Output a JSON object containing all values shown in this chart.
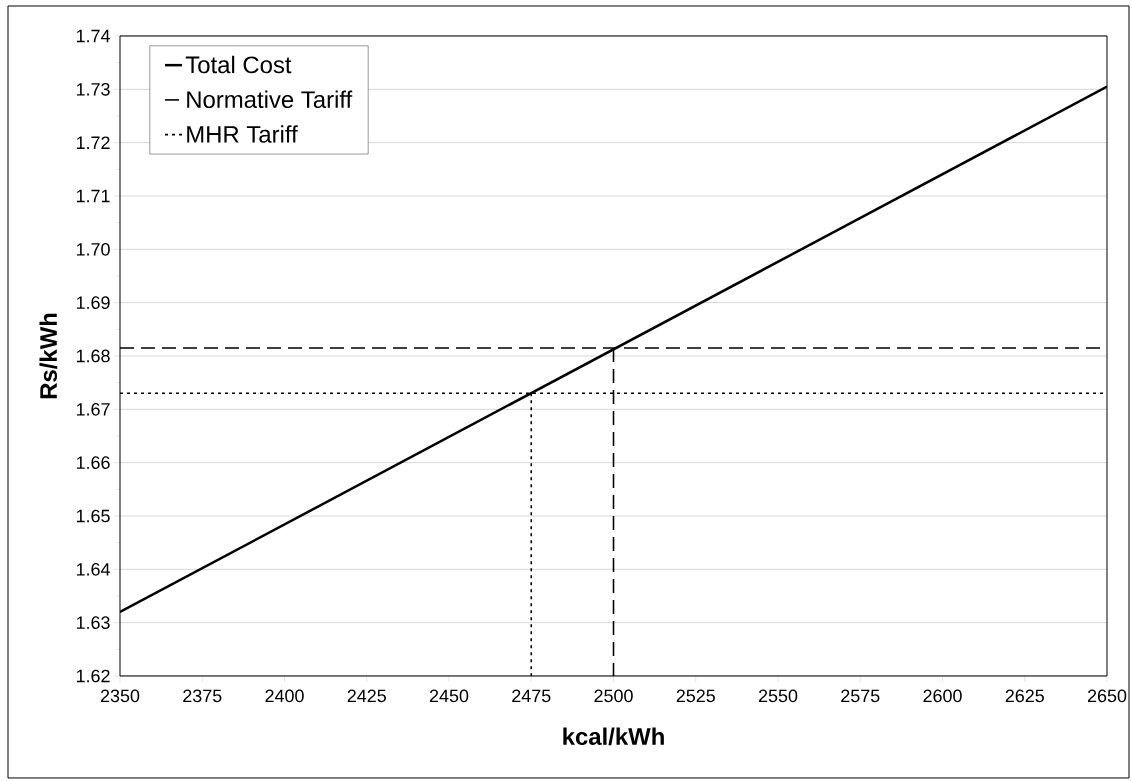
{
  "chart_data": {
    "type": "line",
    "xlabel": "kcal/kWh",
    "ylabel": "Rs/kWh",
    "xlim": [
      2350,
      2650
    ],
    "xticks": [
      2350,
      2375,
      2400,
      2425,
      2450,
      2475,
      2500,
      2525,
      2550,
      2575,
      2600,
      2625,
      2650
    ],
    "ylim": [
      1.62,
      1.74
    ],
    "yticks": [
      1.62,
      1.63,
      1.64,
      1.65,
      1.66,
      1.67,
      1.68,
      1.69,
      {
        "value": 1.7,
        "label": "1.70"
      },
      1.71,
      1.72,
      1.73,
      1.74
    ],
    "grid": "y",
    "legend": "top left",
    "marker": "none",
    "series": [
      {
        "name": "Total Cost",
        "color": "#000000",
        "line_style": "solid",
        "x": [
          2350,
          2650
        ],
        "values": [
          1.632,
          1.7305
        ]
      },
      {
        "name": "Normative Tariff",
        "color": "#000000",
        "line_style": "dashed",
        "x": [
          2350,
          2650,
          2575,
          2500,
          2500
        ],
        "values": [
          1.6815,
          1.6815,
          null,
          1.6815,
          1.62
        ]
      },
      {
        "name": "MHR Tariff",
        "color": "#000000",
        "line_style": "dotted",
        "x": [
          2350,
          2650,
          2560,
          2475,
          2475
        ],
        "values": [
          1.673,
          1.673,
          null,
          1.673,
          1.62
        ]
      }
    ]
  }
}
